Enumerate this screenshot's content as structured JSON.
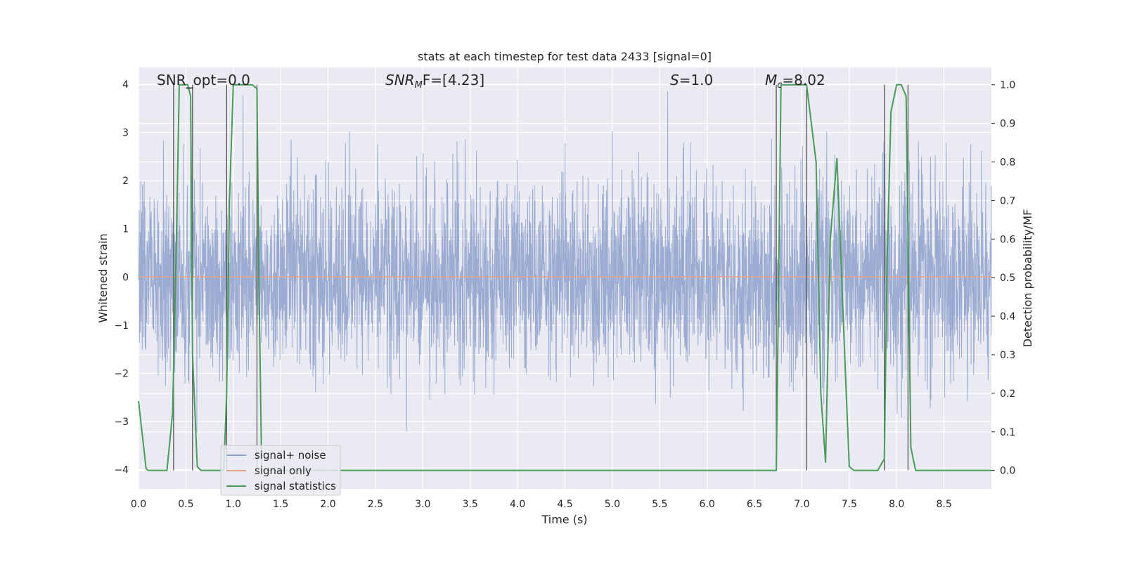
{
  "chart_data": {
    "type": "line",
    "title": "stats at each timestep for test data 2433 [signal=0]",
    "xlabel": "Time (s)",
    "ylabel": "Whitened strain",
    "ylabel_right": "Detection probability/MF",
    "xlim": [
      0.0,
      9.0
    ],
    "ylim": [
      -4.4,
      4.35
    ],
    "ylim_right": [
      -0.048,
      1.045
    ],
    "x_ticks": [
      "0.0",
      "0.5",
      "1.0",
      "1.5",
      "2.0",
      "2.5",
      "3.0",
      "3.5",
      "4.0",
      "4.5",
      "5.0",
      "5.5",
      "6.0",
      "6.5",
      "7.0",
      "7.5",
      "8.0",
      "8.5"
    ],
    "y_ticks": [
      "4",
      "3",
      "2",
      "1",
      "0",
      "−1",
      "−2",
      "−3",
      "−4"
    ],
    "y_ticks_right": [
      "1.0",
      "0.9",
      "0.8",
      "0.7",
      "0.6",
      "0.5",
      "0.4",
      "0.3",
      "0.2",
      "0.1",
      "0.0"
    ],
    "grid": true,
    "annotations": {
      "snr_opt": "SNR_opt=0.0",
      "snr_mf_prefix": "SNR",
      "snr_mf_sub": "M",
      "snr_mf_suffix": "F=[4.23]",
      "s_prefix": "S",
      "s_suffix": "=1.0",
      "mc_prefix": "M",
      "mc_sub": "c",
      "mc_suffix": "=8.02"
    },
    "legend": {
      "placement": "lower-left",
      "entries": [
        "signal+ noise",
        "signal only",
        "signal statistics"
      ]
    },
    "series": [
      {
        "name": "signal+ noise",
        "color": "#8da0cb",
        "description_stats": {
          "noise_sigma": 1.0,
          "approx_max": 3.95,
          "approx_min": -3.55
        }
      },
      {
        "name": "signal only",
        "color": "#e8a18a",
        "x": [
          0.0,
          9.0
        ],
        "y": [
          0.0,
          0.0
        ]
      },
      {
        "name": "signal statistics",
        "color": "#4a9a5a",
        "axis": "right",
        "x": [
          0.0,
          0.08,
          0.1,
          0.15,
          0.2,
          0.3,
          0.36,
          0.4,
          0.43,
          0.47,
          0.52,
          0.55,
          0.57,
          0.62,
          0.66,
          0.7,
          0.8,
          0.9,
          0.93,
          0.96,
          1.0,
          1.1,
          1.2,
          1.25,
          1.27,
          1.3,
          1.4,
          2.0,
          3.0,
          4.0,
          5.0,
          6.0,
          6.5,
          6.73,
          6.78,
          6.85,
          6.95,
          7.05,
          7.15,
          7.2,
          7.25,
          7.3,
          7.37,
          7.42,
          7.46,
          7.5,
          7.55,
          7.6,
          7.7,
          7.8,
          7.87,
          7.9,
          7.94,
          8.0,
          8.05,
          8.1,
          8.12,
          8.15,
          8.2,
          8.3,
          8.5,
          8.8,
          9.0
        ],
        "y": [
          0.18,
          0.005,
          0.0,
          0.0,
          0.0,
          0.0,
          0.15,
          0.6,
          1.0,
          1.0,
          1.0,
          0.97,
          0.3,
          0.01,
          0.0,
          0.0,
          0.0,
          0.0,
          0.2,
          0.7,
          1.0,
          1.0,
          1.0,
          0.99,
          0.5,
          0.0,
          0.0,
          0.0,
          0.0,
          0.0,
          0.0,
          0.0,
          0.0,
          0.0,
          1.0,
          1.0,
          1.0,
          1.0,
          0.8,
          0.2,
          0.02,
          0.6,
          0.81,
          0.5,
          0.25,
          0.01,
          0.0,
          0.0,
          0.0,
          0.0,
          0.03,
          0.55,
          0.93,
          1.0,
          1.0,
          0.97,
          0.6,
          0.06,
          0.0,
          0.0,
          0.0,
          0.0,
          0.0
        ]
      }
    ],
    "vertical_markers_x": [
      0.37,
      0.57,
      0.93,
      1.25,
      6.73,
      7.05,
      7.87,
      8.12
    ]
  }
}
